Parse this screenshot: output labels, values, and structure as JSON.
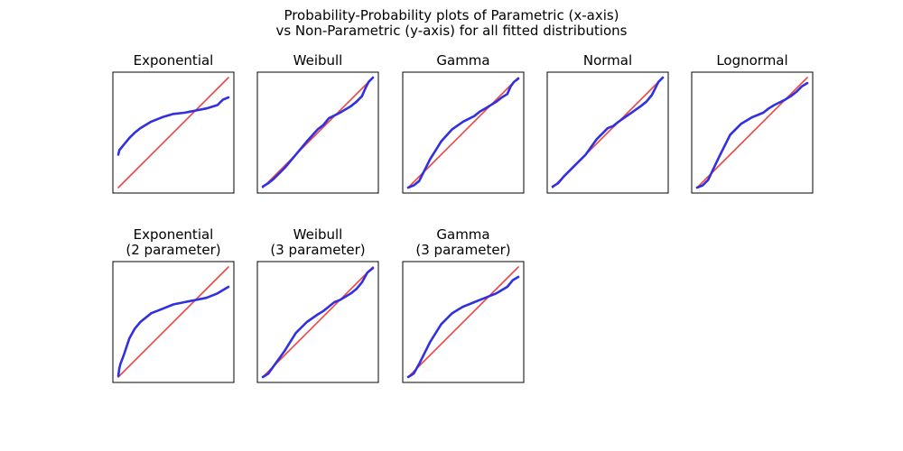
{
  "figure": {
    "title_line1": "Probability-Probability plots of Parametric (x-axis)",
    "title_line2": "vs Non-Parametric (y-axis) for all fitted distributions"
  },
  "colors": {
    "empirical": "#3030e0",
    "reference": "#ee4444",
    "frame": "#000000",
    "background": "#ffffff"
  },
  "chart_data": [
    {
      "type": "line",
      "title": "Exponential",
      "xlim": [
        0,
        1
      ],
      "ylim": [
        0,
        1
      ],
      "grid": false,
      "series": [
        {
          "role": "empirical",
          "x": [
            0.0,
            0.01,
            0.05,
            0.1,
            0.15,
            0.2,
            0.3,
            0.4,
            0.5,
            0.6,
            0.65,
            0.7,
            0.8,
            0.9,
            0.95,
            1.0
          ],
          "y": [
            0.3,
            0.34,
            0.39,
            0.45,
            0.5,
            0.54,
            0.6,
            0.64,
            0.67,
            0.68,
            0.69,
            0.7,
            0.72,
            0.75,
            0.8,
            0.82
          ]
        },
        {
          "role": "reference",
          "x": [
            0.0,
            1.0
          ],
          "y": [
            0.0,
            1.0
          ]
        }
      ]
    },
    {
      "type": "line",
      "title": "Weibull",
      "xlim": [
        0,
        1
      ],
      "ylim": [
        0,
        1
      ],
      "grid": false,
      "series": [
        {
          "role": "empirical",
          "x": [
            0.0,
            0.05,
            0.1,
            0.2,
            0.3,
            0.4,
            0.5,
            0.55,
            0.6,
            0.7,
            0.8,
            0.85,
            0.9,
            0.93,
            0.96,
            1.0
          ],
          "y": [
            0.01,
            0.04,
            0.08,
            0.18,
            0.3,
            0.42,
            0.53,
            0.57,
            0.63,
            0.68,
            0.74,
            0.78,
            0.83,
            0.9,
            0.96,
            1.0
          ]
        },
        {
          "role": "reference",
          "x": [
            0.0,
            1.0
          ],
          "y": [
            0.0,
            1.0
          ]
        }
      ]
    },
    {
      "type": "line",
      "title": "Gamma",
      "xlim": [
        0,
        1
      ],
      "ylim": [
        0,
        1
      ],
      "grid": false,
      "series": [
        {
          "role": "empirical",
          "x": [
            0.0,
            0.05,
            0.1,
            0.2,
            0.3,
            0.4,
            0.5,
            0.6,
            0.65,
            0.7,
            0.8,
            0.85,
            0.9,
            0.93,
            0.96,
            1.0
          ],
          "y": [
            0.0,
            0.02,
            0.06,
            0.26,
            0.42,
            0.53,
            0.6,
            0.65,
            0.69,
            0.72,
            0.78,
            0.82,
            0.85,
            0.92,
            0.96,
            0.99
          ]
        },
        {
          "role": "reference",
          "x": [
            0.0,
            1.0
          ],
          "y": [
            0.0,
            1.0
          ]
        }
      ]
    },
    {
      "type": "line",
      "title": "Normal",
      "xlim": [
        0,
        1
      ],
      "ylim": [
        0,
        1
      ],
      "grid": false,
      "series": [
        {
          "role": "empirical",
          "x": [
            0.0,
            0.05,
            0.1,
            0.2,
            0.3,
            0.4,
            0.5,
            0.55,
            0.6,
            0.7,
            0.8,
            0.85,
            0.9,
            0.93,
            0.96,
            1.0
          ],
          "y": [
            0.01,
            0.04,
            0.1,
            0.2,
            0.3,
            0.44,
            0.54,
            0.56,
            0.6,
            0.67,
            0.74,
            0.78,
            0.84,
            0.9,
            0.96,
            1.0
          ]
        },
        {
          "role": "reference",
          "x": [
            0.0,
            1.0
          ],
          "y": [
            0.0,
            1.0
          ]
        }
      ]
    },
    {
      "type": "line",
      "title": "Lognormal",
      "xlim": [
        0,
        1
      ],
      "ylim": [
        0,
        1
      ],
      "grid": false,
      "series": [
        {
          "role": "empirical",
          "x": [
            0.0,
            0.05,
            0.1,
            0.2,
            0.3,
            0.4,
            0.5,
            0.55,
            0.6,
            0.65,
            0.7,
            0.8,
            0.85,
            0.9,
            0.95,
            1.0
          ],
          "y": [
            0.0,
            0.02,
            0.07,
            0.28,
            0.48,
            0.58,
            0.64,
            0.66,
            0.68,
            0.72,
            0.75,
            0.8,
            0.83,
            0.87,
            0.92,
            0.95
          ]
        },
        {
          "role": "reference",
          "x": [
            0.0,
            1.0
          ],
          "y": [
            0.0,
            1.0
          ]
        }
      ]
    },
    {
      "type": "line",
      "title": "Exponential\n(2 parameter)",
      "xlim": [
        0,
        1
      ],
      "ylim": [
        0,
        1
      ],
      "grid": false,
      "series": [
        {
          "role": "empirical",
          "x": [
            0.0,
            0.01,
            0.02,
            0.05,
            0.1,
            0.15,
            0.2,
            0.3,
            0.4,
            0.5,
            0.6,
            0.65,
            0.7,
            0.8,
            0.9,
            1.0
          ],
          "y": [
            0.01,
            0.08,
            0.12,
            0.2,
            0.35,
            0.44,
            0.5,
            0.58,
            0.62,
            0.66,
            0.68,
            0.69,
            0.7,
            0.72,
            0.76,
            0.82
          ]
        },
        {
          "role": "reference",
          "x": [
            0.0,
            1.0
          ],
          "y": [
            0.0,
            1.0
          ]
        }
      ]
    },
    {
      "type": "line",
      "title": "Weibull\n(3 parameter)",
      "xlim": [
        0,
        1
      ],
      "ylim": [
        0,
        1
      ],
      "grid": false,
      "series": [
        {
          "role": "empirical",
          "x": [
            0.0,
            0.05,
            0.1,
            0.2,
            0.3,
            0.4,
            0.5,
            0.55,
            0.6,
            0.65,
            0.7,
            0.8,
            0.85,
            0.9,
            0.95,
            1.0
          ],
          "y": [
            0.0,
            0.03,
            0.1,
            0.24,
            0.4,
            0.5,
            0.57,
            0.6,
            0.64,
            0.68,
            0.7,
            0.76,
            0.8,
            0.86,
            0.95,
            0.99
          ]
        },
        {
          "role": "reference",
          "x": [
            0.0,
            1.0
          ],
          "y": [
            0.0,
            1.0
          ]
        }
      ]
    },
    {
      "type": "line",
      "title": "Gamma\n(3 parameter)",
      "xlim": [
        0,
        1
      ],
      "ylim": [
        0,
        1
      ],
      "grid": false,
      "series": [
        {
          "role": "empirical",
          "x": [
            0.0,
            0.05,
            0.1,
            0.2,
            0.3,
            0.4,
            0.5,
            0.55,
            0.6,
            0.65,
            0.7,
            0.75,
            0.8,
            0.9,
            0.95,
            1.0
          ],
          "y": [
            0.0,
            0.03,
            0.12,
            0.32,
            0.48,
            0.58,
            0.64,
            0.66,
            0.68,
            0.7,
            0.72,
            0.74,
            0.76,
            0.82,
            0.88,
            0.91
          ]
        },
        {
          "role": "reference",
          "x": [
            0.0,
            1.0
          ],
          "y": [
            0.0,
            1.0
          ]
        }
      ]
    }
  ]
}
